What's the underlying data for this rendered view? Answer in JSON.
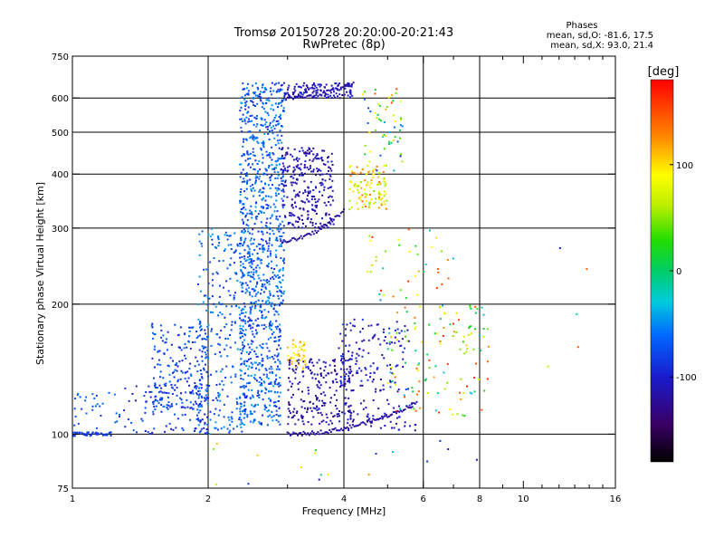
{
  "header": {
    "title": "Tromsø 20150728 20:20:00-20:21:43",
    "subtitle": "RwPretec (8p)"
  },
  "phases_box": {
    "heading": "Phases",
    "line_o": "mean, sd,O: -81.6, 17.5",
    "line_x": "mean, sd,X: 93.0, 21.4"
  },
  "chart_data": {
    "type": "scatter",
    "xlabel": "Frequency [MHz]",
    "ylabel": "Stationary phase Virtual Height [km]",
    "xscale": "log",
    "yscale": "log",
    "xlim": [
      1,
      16
    ],
    "ylim": [
      75,
      750
    ],
    "grid": true,
    "xticks": [
      1,
      2,
      4,
      6,
      8,
      10,
      16
    ],
    "xtick_labels": [
      "1",
      "2",
      "4",
      "6",
      "8",
      "10",
      "16"
    ],
    "yticks": [
      75,
      100,
      200,
      300,
      400,
      500,
      600,
      750
    ],
    "ytick_labels": [
      "75",
      "100",
      "200",
      "300",
      "400",
      "500",
      "600",
      "750"
    ],
    "x_gridlines": [
      2,
      4,
      6,
      8
    ],
    "y_gridlines": [
      100,
      200,
      300,
      400,
      500,
      600
    ],
    "colorbar": {
      "label": "[deg]",
      "min": -180,
      "max": 180,
      "ticks": [
        -100,
        0,
        100
      ],
      "tick_labels": [
        "-100",
        "0",
        "100"
      ]
    },
    "clusters": [
      {
        "x": [
          1.0,
          1.22
        ],
        "y": [
          99,
          101
        ],
        "phase": [
          -95,
          -75
        ],
        "count": 55
      },
      {
        "x": [
          1.0,
          1.28
        ],
        "y": [
          103,
          125
        ],
        "phase": [
          -85,
          -55
        ],
        "count": 30
      },
      {
        "x": [
          1.3,
          2.0
        ],
        "y": [
          100,
          130
        ],
        "phase": [
          -110,
          -60
        ],
        "count": 110
      },
      {
        "x": [
          1.5,
          2.0
        ],
        "y": [
          115,
          180
        ],
        "phase": [
          -105,
          -55
        ],
        "count": 200
      },
      {
        "x": [
          1.9,
          2.45
        ],
        "y": [
          100,
          300
        ],
        "phase": [
          -95,
          -40
        ],
        "count": 260
      },
      {
        "x": [
          2.35,
          2.9
        ],
        "y": [
          105,
          200
        ],
        "phase": [
          -100,
          -40
        ],
        "count": 350
      },
      {
        "x": [
          2.35,
          2.95
        ],
        "y": [
          200,
          650
        ],
        "phase": [
          -95,
          -40
        ],
        "count": 700
      },
      {
        "x": [
          2.9,
          3.8
        ],
        "y": [
          300,
          460
        ],
        "phase": [
          -130,
          -95
        ],
        "count": 280
      },
      {
        "x": [
          2.9,
          4.2
        ],
        "y": [
          600,
          650
        ],
        "phase": [
          -125,
          -90
        ],
        "count": 130
      },
      {
        "x": [
          3.0,
          4.2
        ],
        "y": [
          105,
          150
        ],
        "phase": [
          -135,
          -100
        ],
        "count": 220
      },
      {
        "x": [
          3.9,
          5.6
        ],
        "y": [
          125,
          185
        ],
        "phase": [
          -125,
          -80
        ],
        "count": 140
      },
      {
        "x": [
          4.1,
          5.0
        ],
        "y": [
          330,
          420
        ],
        "phase": [
          45,
          140
        ],
        "count": 110
      },
      {
        "x": [
          3.0,
          3.3
        ],
        "y": [
          140,
          165
        ],
        "phase": [
          85,
          125
        ],
        "count": 40
      },
      {
        "x": [
          4.4,
          5.4
        ],
        "y": [
          400,
          630
        ],
        "phase": [
          -100,
          160
        ],
        "count": 60
      },
      {
        "x": [
          5.0,
          8.4
        ],
        "y": [
          110,
          200
        ],
        "phase": [
          -40,
          170
        ],
        "count": 130
      },
      {
        "x": [
          4.5,
          7.0
        ],
        "y": [
          200,
          300
        ],
        "phase": [
          -60,
          170
        ],
        "count": 40
      },
      {
        "x": [
          4.0,
          5.8
        ],
        "y": [
          100,
          120
        ],
        "phase": [
          -130,
          -95
        ],
        "count": 50
      },
      {
        "x": [
          2.0,
          8.0
        ],
        "y": [
          76,
          98
        ],
        "phase": [
          -120,
          140
        ],
        "count": 18
      },
      {
        "x": [
          10.0,
          14.0
        ],
        "y": [
          125,
          310
        ],
        "phase": [
          -120,
          150
        ],
        "count": 5
      }
    ],
    "traces": [
      {
        "from": [
          3.0,
          100
        ],
        "to": [
          5.8,
          118
        ],
        "phase": -120,
        "count": 90
      },
      {
        "from": [
          2.9,
          280
        ],
        "to": [
          4.0,
          330
        ],
        "phase": -120,
        "count": 45
      },
      {
        "from": [
          2.95,
          600
        ],
        "to": [
          4.2,
          650
        ],
        "phase": -115,
        "count": 40
      }
    ]
  }
}
